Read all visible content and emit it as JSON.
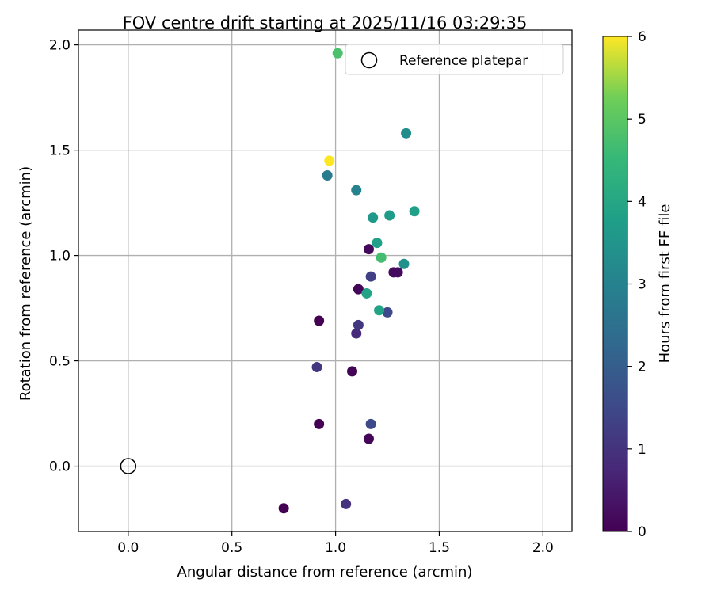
{
  "chart_data": {
    "type": "scatter",
    "title": "FOV centre drift starting at 2025/11/16 03:29:35",
    "xlabel": "Angular distance from reference (arcmin)",
    "ylabel": "Rotation from reference (arcmin)",
    "xlim": [
      -0.24,
      2.14
    ],
    "ylim": [
      -0.31,
      2.07
    ],
    "xticks": [
      0.0,
      0.5,
      1.0,
      1.5,
      2.0
    ],
    "xtick_labels": [
      "0.0",
      "0.5",
      "1.0",
      "1.5",
      "2.0"
    ],
    "yticks": [
      0.0,
      0.5,
      1.0,
      1.5,
      2.0
    ],
    "ytick_labels": [
      "0.0",
      "0.5",
      "1.0",
      "1.5",
      "2.0"
    ],
    "grid": true,
    "legend": {
      "position": "top-right",
      "entries": [
        {
          "label": "Reference platepar",
          "marker": "open-circle"
        }
      ]
    },
    "reference_point": {
      "x": 0.0,
      "y": 0.0
    },
    "colorbar": {
      "label": "Hours from first FF file",
      "colormap": "viridis",
      "range": [
        0,
        6
      ],
      "ticks": [
        0,
        1,
        2,
        3,
        4,
        5,
        6
      ],
      "tick_labels": [
        "0",
        "1",
        "2",
        "3",
        "4",
        "5",
        "6"
      ]
    },
    "points": [
      {
        "x": 0.75,
        "y": -0.2,
        "hours": 0.0
      },
      {
        "x": 0.92,
        "y": 0.2,
        "hours": 0.0
      },
      {
        "x": 0.92,
        "y": 0.69,
        "hours": 0.0
      },
      {
        "x": 1.08,
        "y": 0.45,
        "hours": 0.05
      },
      {
        "x": 1.16,
        "y": 0.13,
        "hours": 0.1
      },
      {
        "x": 1.11,
        "y": 0.84,
        "hours": 0.1
      },
      {
        "x": 1.16,
        "y": 1.03,
        "hours": 0.15
      },
      {
        "x": 1.28,
        "y": 0.92,
        "hours": 0.2
      },
      {
        "x": 1.3,
        "y": 0.92,
        "hours": 0.2
      },
      {
        "x": 1.1,
        "y": 0.63,
        "hours": 0.8
      },
      {
        "x": 1.05,
        "y": -0.18,
        "hours": 1.0
      },
      {
        "x": 0.91,
        "y": 0.47,
        "hours": 1.1
      },
      {
        "x": 1.11,
        "y": 0.67,
        "hours": 1.1
      },
      {
        "x": 1.17,
        "y": 0.9,
        "hours": 1.3
      },
      {
        "x": 1.17,
        "y": 0.2,
        "hours": 1.5
      },
      {
        "x": 1.25,
        "y": 0.73,
        "hours": 1.5
      },
      {
        "x": 0.96,
        "y": 1.38,
        "hours": 2.8
      },
      {
        "x": 1.1,
        "y": 1.31,
        "hours": 3.0
      },
      {
        "x": 1.34,
        "y": 1.58,
        "hours": 3.3
      },
      {
        "x": 1.33,
        "y": 0.96,
        "hours": 3.4
      },
      {
        "x": 1.18,
        "y": 1.18,
        "hours": 3.6
      },
      {
        "x": 1.26,
        "y": 1.19,
        "hours": 3.7
      },
      {
        "x": 1.38,
        "y": 1.21,
        "hours": 3.8
      },
      {
        "x": 1.2,
        "y": 1.06,
        "hours": 3.8
      },
      {
        "x": 1.15,
        "y": 0.82,
        "hours": 3.9
      },
      {
        "x": 1.21,
        "y": 0.74,
        "hours": 3.9
      },
      {
        "x": 1.22,
        "y": 0.99,
        "hours": 4.7
      },
      {
        "x": 1.01,
        "y": 1.96,
        "hours": 4.8
      },
      {
        "x": 0.97,
        "y": 1.45,
        "hours": 6.0
      }
    ]
  }
}
